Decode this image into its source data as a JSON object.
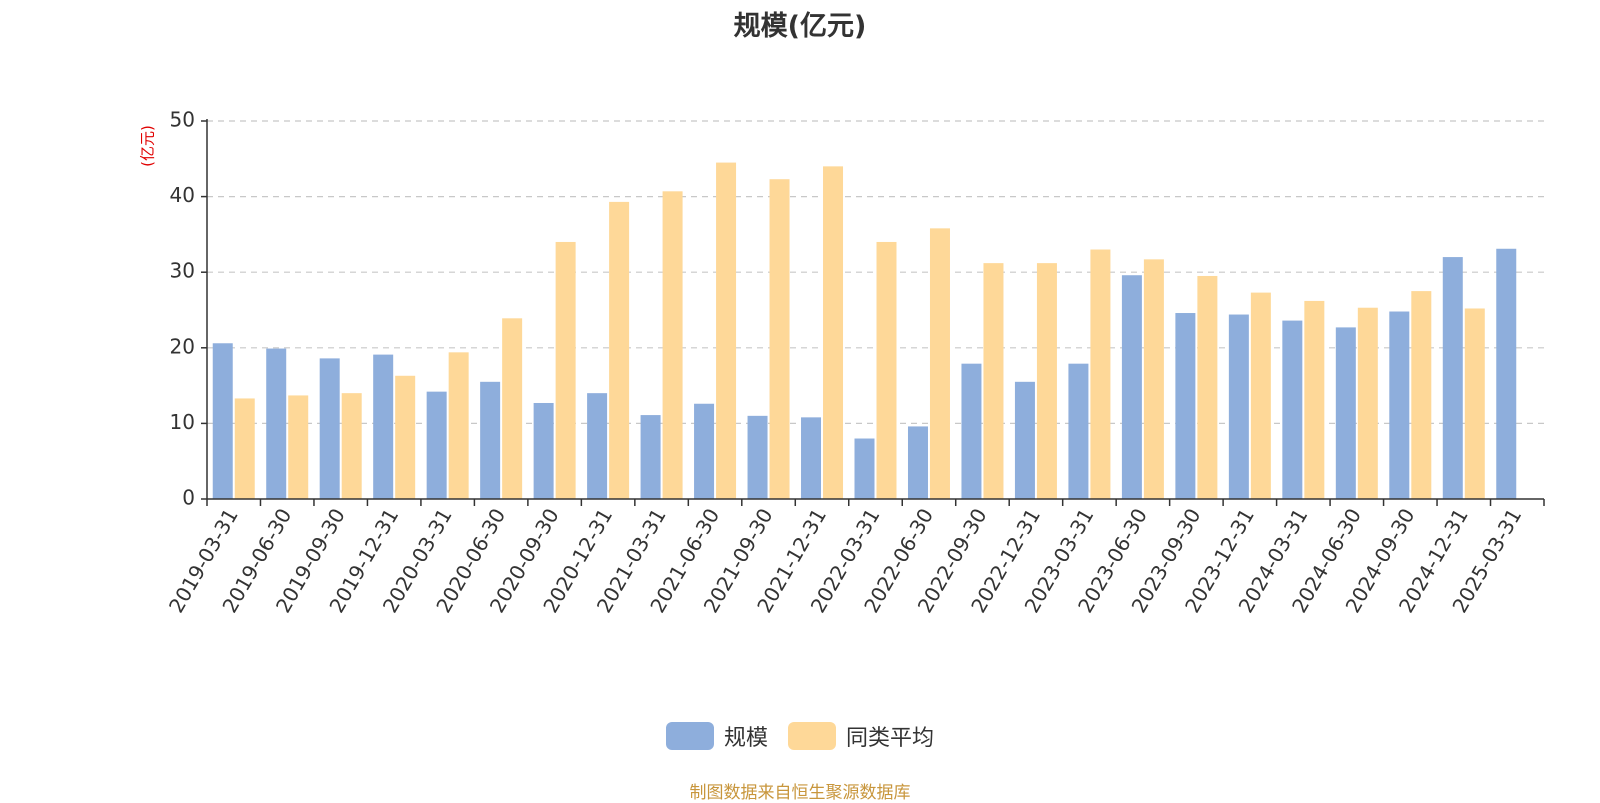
{
  "chart_data": {
    "type": "bar",
    "title": "规模(亿元)",
    "ylabel": "(亿元)",
    "xlabel": "",
    "ylim": [
      0,
      50
    ],
    "yticks": [
      0,
      10,
      20,
      30,
      40,
      50
    ],
    "grid": true,
    "legend_position": "bottom",
    "categories": [
      "2019-03-31",
      "2019-06-30",
      "2019-09-30",
      "2019-12-31",
      "2020-03-31",
      "2020-06-30",
      "2020-09-30",
      "2020-12-31",
      "2021-03-31",
      "2021-06-30",
      "2021-09-30",
      "2021-12-31",
      "2022-03-31",
      "2022-06-30",
      "2022-09-30",
      "2022-12-31",
      "2023-03-31",
      "2023-06-30",
      "2023-09-30",
      "2023-12-31",
      "2024-03-31",
      "2024-06-30",
      "2024-09-30",
      "2024-12-31",
      "2025-03-31"
    ],
    "series": [
      {
        "name": "规模",
        "color": "#8eaedc",
        "values": [
          20.6,
          19.9,
          18.6,
          19.1,
          14.2,
          15.5,
          12.7,
          14.0,
          11.1,
          12.6,
          11.0,
          10.8,
          8.0,
          9.6,
          17.9,
          15.5,
          17.9,
          29.6,
          24.6,
          24.4,
          23.6,
          22.7,
          24.8,
          32.0,
          33.1
        ]
      },
      {
        "name": "同类平均",
        "color": "#fed898",
        "values": [
          13.3,
          13.7,
          14.0,
          16.3,
          19.4,
          23.9,
          34.0,
          39.3,
          40.7,
          44.5,
          42.3,
          44.0,
          34.0,
          35.8,
          31.2,
          31.2,
          33.0,
          31.7,
          29.5,
          27.3,
          26.2,
          25.3,
          27.5,
          25.2,
          null
        ]
      }
    ]
  },
  "footer": {
    "source": "制图数据来自恒生聚源数据库"
  }
}
